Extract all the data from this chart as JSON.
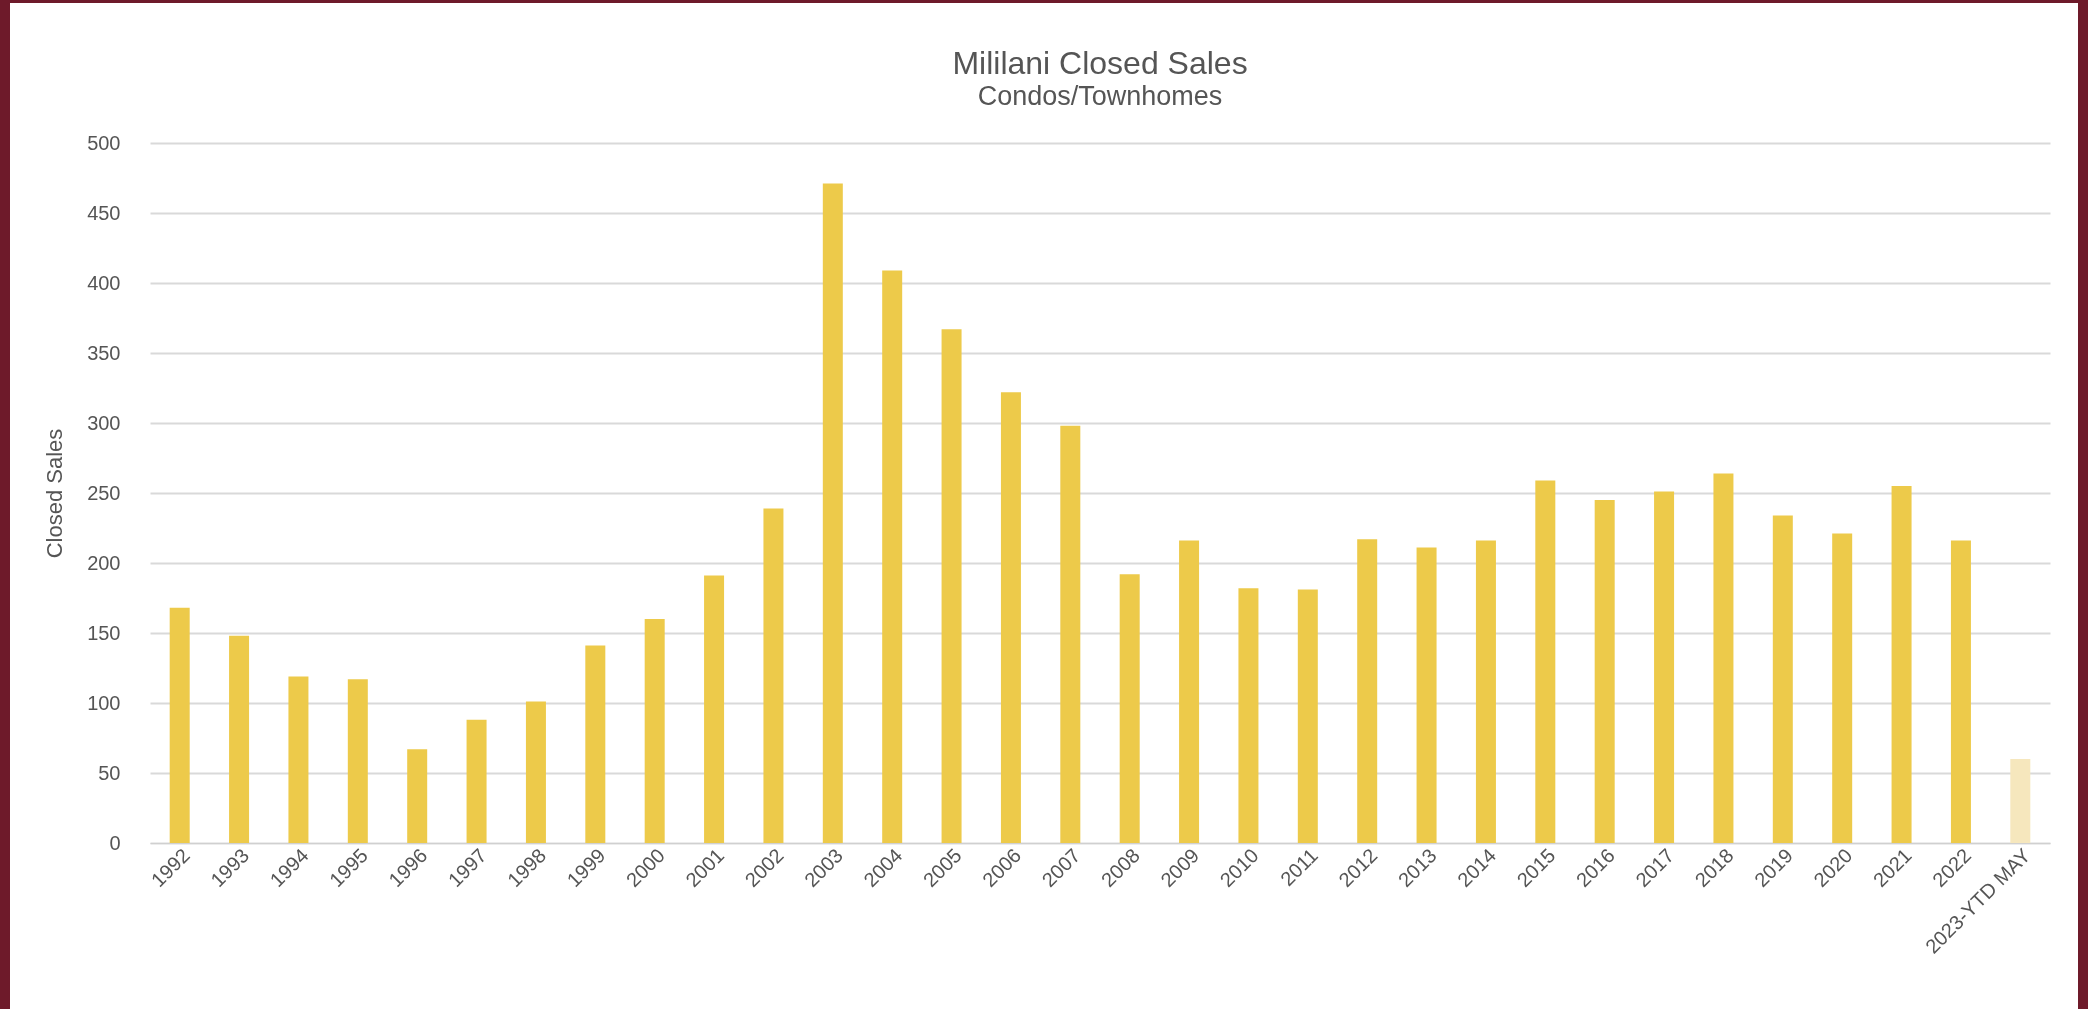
{
  "chart_data": {
    "type": "bar",
    "title": "Mililani Closed Sales",
    "subtitle": "Condos/Townhomes",
    "ylabel": "Closed Sales",
    "categories": [
      "1992",
      "1993",
      "1994",
      "1995",
      "1996",
      "1997",
      "1998",
      "1999",
      "2000",
      "2001",
      "2002",
      "2003",
      "2004",
      "2005",
      "2006",
      "2007",
      "2008",
      "2009",
      "2010",
      "2011",
      "2012",
      "2013",
      "2014",
      "2015",
      "2016",
      "2017",
      "2018",
      "2019",
      "2020",
      "2021",
      "2022",
      "2023-YTD MAY"
    ],
    "values": [
      168,
      148,
      119,
      117,
      67,
      88,
      101,
      141,
      160,
      191,
      239,
      471,
      409,
      367,
      322,
      298,
      192,
      216,
      182,
      181,
      217,
      211,
      216,
      259,
      245,
      251,
      264,
      234,
      221,
      255,
      216,
      60
    ],
    "colors": [
      "#edca4a",
      "#edca4a",
      "#edca4a",
      "#edca4a",
      "#edca4a",
      "#edca4a",
      "#edca4a",
      "#edca4a",
      "#edca4a",
      "#edca4a",
      "#edca4a",
      "#edca4a",
      "#edca4a",
      "#edca4a",
      "#edca4a",
      "#edca4a",
      "#edca4a",
      "#edca4a",
      "#edca4a",
      "#edca4a",
      "#edca4a",
      "#edca4a",
      "#edca4a",
      "#edca4a",
      "#edca4a",
      "#edca4a",
      "#edca4a",
      "#edca4a",
      "#edca4a",
      "#edca4a",
      "#edca4a",
      "#f6e7bd"
    ],
    "ylim": [
      0,
      500
    ],
    "yticks": [
      0,
      50,
      100,
      150,
      200,
      250,
      300,
      350,
      400,
      450,
      500
    ],
    "grid": "y"
  }
}
